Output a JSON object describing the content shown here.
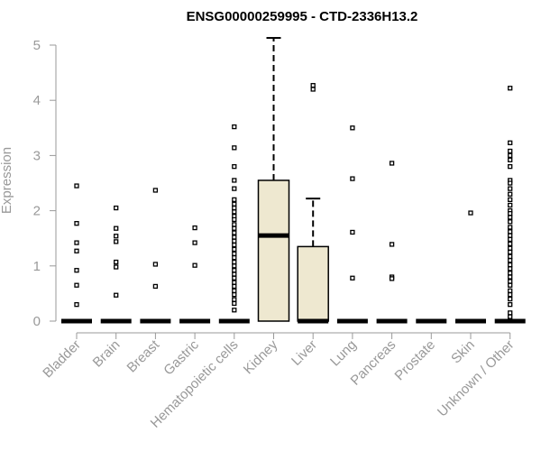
{
  "chart_data": {
    "type": "box",
    "title": "ENSG00000259995 - CTD-2336H13.2",
    "xlabel": "",
    "ylabel": "Expression",
    "ylim": [
      0,
      5
    ],
    "yticks": [
      0,
      1,
      2,
      3,
      4,
      5
    ],
    "grid": false,
    "box_fill": "#EEE8D0",
    "categories": [
      "Bladder",
      "Brain",
      "Breast",
      "Gastric",
      "Hematopoietic cells",
      "Kidney",
      "Liver",
      "Lung",
      "Pancreas",
      "Prostate",
      "Skin",
      "Unknown / Other"
    ],
    "boxes": [
      {
        "category": "Bladder",
        "q1": 0,
        "median": 0,
        "q3": 0,
        "whisker_low": 0,
        "whisker_high": 0,
        "outliers": [
          2.45,
          1.77,
          1.42,
          1.27,
          0.92,
          0.65,
          0.3
        ]
      },
      {
        "category": "Brain",
        "q1": 0,
        "median": 0,
        "q3": 0,
        "whisker_low": 0,
        "whisker_high": 0,
        "outliers": [
          2.05,
          1.68,
          1.54,
          1.44,
          1.07,
          0.98,
          0.47
        ]
      },
      {
        "category": "Breast",
        "q1": 0,
        "median": 0,
        "q3": 0,
        "whisker_low": 0,
        "whisker_high": 0,
        "outliers": [
          2.37,
          1.03,
          0.63
        ]
      },
      {
        "category": "Gastric",
        "q1": 0,
        "median": 0,
        "q3": 0,
        "whisker_low": 0,
        "whisker_high": 0,
        "outliers": [
          1.69,
          1.42,
          1.01
        ]
      },
      {
        "category": "Hematopoietic cells",
        "q1": 0,
        "median": 0,
        "q3": 0,
        "whisker_low": 0,
        "whisker_high": 0,
        "outliers": [
          3.52,
          3.14,
          2.8,
          2.55,
          2.4,
          2.2,
          2.12,
          2.05,
          1.98,
          1.9,
          1.84,
          1.75,
          1.68,
          1.6,
          1.52,
          1.45,
          1.38,
          1.3,
          1.22,
          1.15,
          1.07,
          1.0,
          0.92,
          0.85,
          0.78,
          0.7,
          0.63,
          0.55,
          0.48,
          0.39,
          0.32,
          0.2
        ]
      },
      {
        "category": "Kidney",
        "q1": 0,
        "median": 1.55,
        "q3": 2.55,
        "whisker_low": 0,
        "whisker_high": 5.13,
        "outliers": []
      },
      {
        "category": "Liver",
        "q1": 0,
        "median": 0,
        "q3": 1.35,
        "whisker_low": 0,
        "whisker_high": 2.22,
        "outliers": [
          4.27,
          4.2
        ]
      },
      {
        "category": "Lung",
        "q1": 0,
        "median": 0,
        "q3": 0,
        "whisker_low": 0,
        "whisker_high": 0,
        "outliers": [
          3.5,
          2.58,
          1.61,
          0.78
        ]
      },
      {
        "category": "Pancreas",
        "q1": 0,
        "median": 0,
        "q3": 0,
        "whisker_low": 0,
        "whisker_high": 0,
        "outliers": [
          2.86,
          1.39,
          0.8,
          0.77
        ]
      },
      {
        "category": "Prostate",
        "q1": 0,
        "median": 0,
        "q3": 0,
        "whisker_low": 0,
        "whisker_high": 0,
        "outliers": []
      },
      {
        "category": "Skin",
        "q1": 0,
        "median": 0,
        "q3": 0,
        "whisker_low": 0,
        "whisker_high": 0,
        "outliers": [
          1.96
        ]
      },
      {
        "category": "Unknown / Other",
        "q1": 0,
        "median": 0,
        "q3": 0,
        "whisker_low": 0,
        "whisker_high": 0,
        "outliers": [
          4.22,
          3.23,
          3.08,
          3.0,
          2.92,
          2.8,
          2.55,
          2.5,
          2.4,
          2.3,
          2.2,
          2.1,
          2.0,
          1.95,
          1.88,
          1.8,
          1.7,
          1.62,
          1.55,
          1.48,
          1.4,
          1.32,
          1.25,
          1.17,
          1.1,
          1.02,
          0.95,
          0.87,
          0.8,
          0.72,
          0.65,
          0.55,
          0.48,
          0.4,
          0.3,
          0.15,
          0.08
        ]
      }
    ]
  }
}
